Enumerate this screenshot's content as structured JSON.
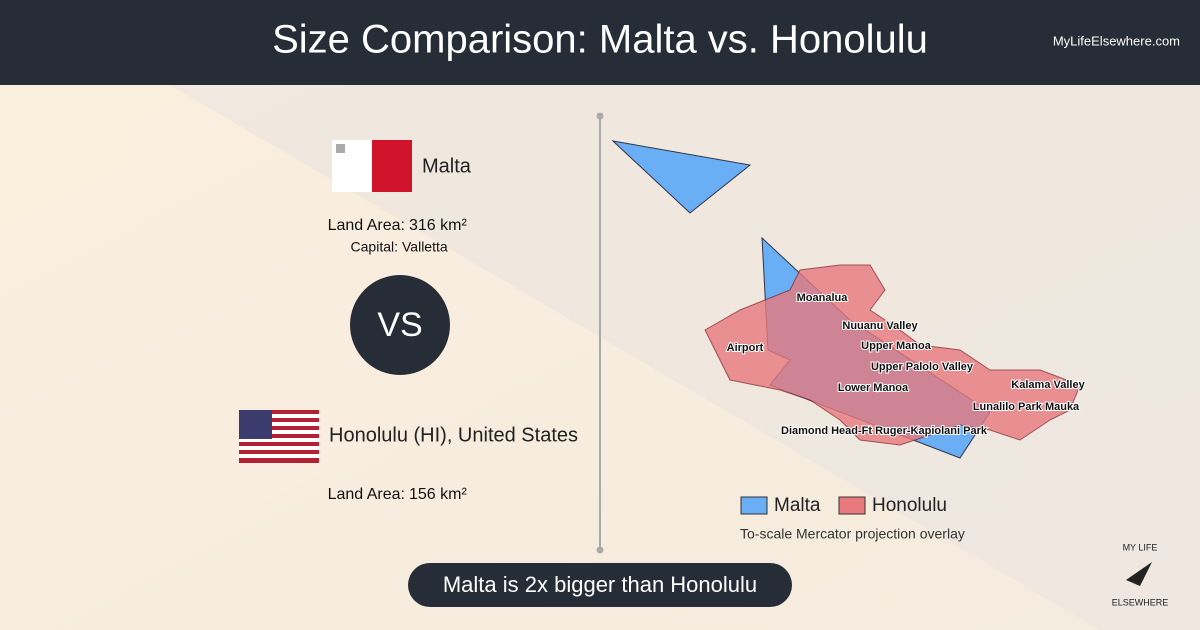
{
  "header": {
    "title": "Size Comparison: Malta vs. Honolulu",
    "site": "MyLifeElsewhere.com"
  },
  "left": {
    "place1": {
      "name": "Malta",
      "area_label": "Land Area:",
      "area": "316 km²",
      "capital_label": "Capital:",
      "capital": "Valletta"
    },
    "vs": "VS",
    "place2": {
      "name": "Honolulu (HI), United States",
      "area_label": "Land Area:",
      "area": "156 km²"
    }
  },
  "map": {
    "labels": [
      "Moanalua",
      "Nuuanu Valley",
      "Airport",
      "Upper Manoa",
      "Upper Palolo Valley",
      "Lower Manoa",
      "Kalama Valley",
      "Lunalilo Park Mauka",
      "Diamond Head-Ft Ruger-Kapiolani Park"
    ],
    "legend": [
      {
        "name": "Malta",
        "color": "#6aaef5"
      },
      {
        "name": "Honolulu",
        "color": "#e87a7e"
      }
    ],
    "note": "To-scale Mercator projection overlay"
  },
  "summary": "Malta is 2x bigger than Honolulu",
  "logo": {
    "line1": "MY LIFE",
    "line2": "ELSEWHERE"
  }
}
